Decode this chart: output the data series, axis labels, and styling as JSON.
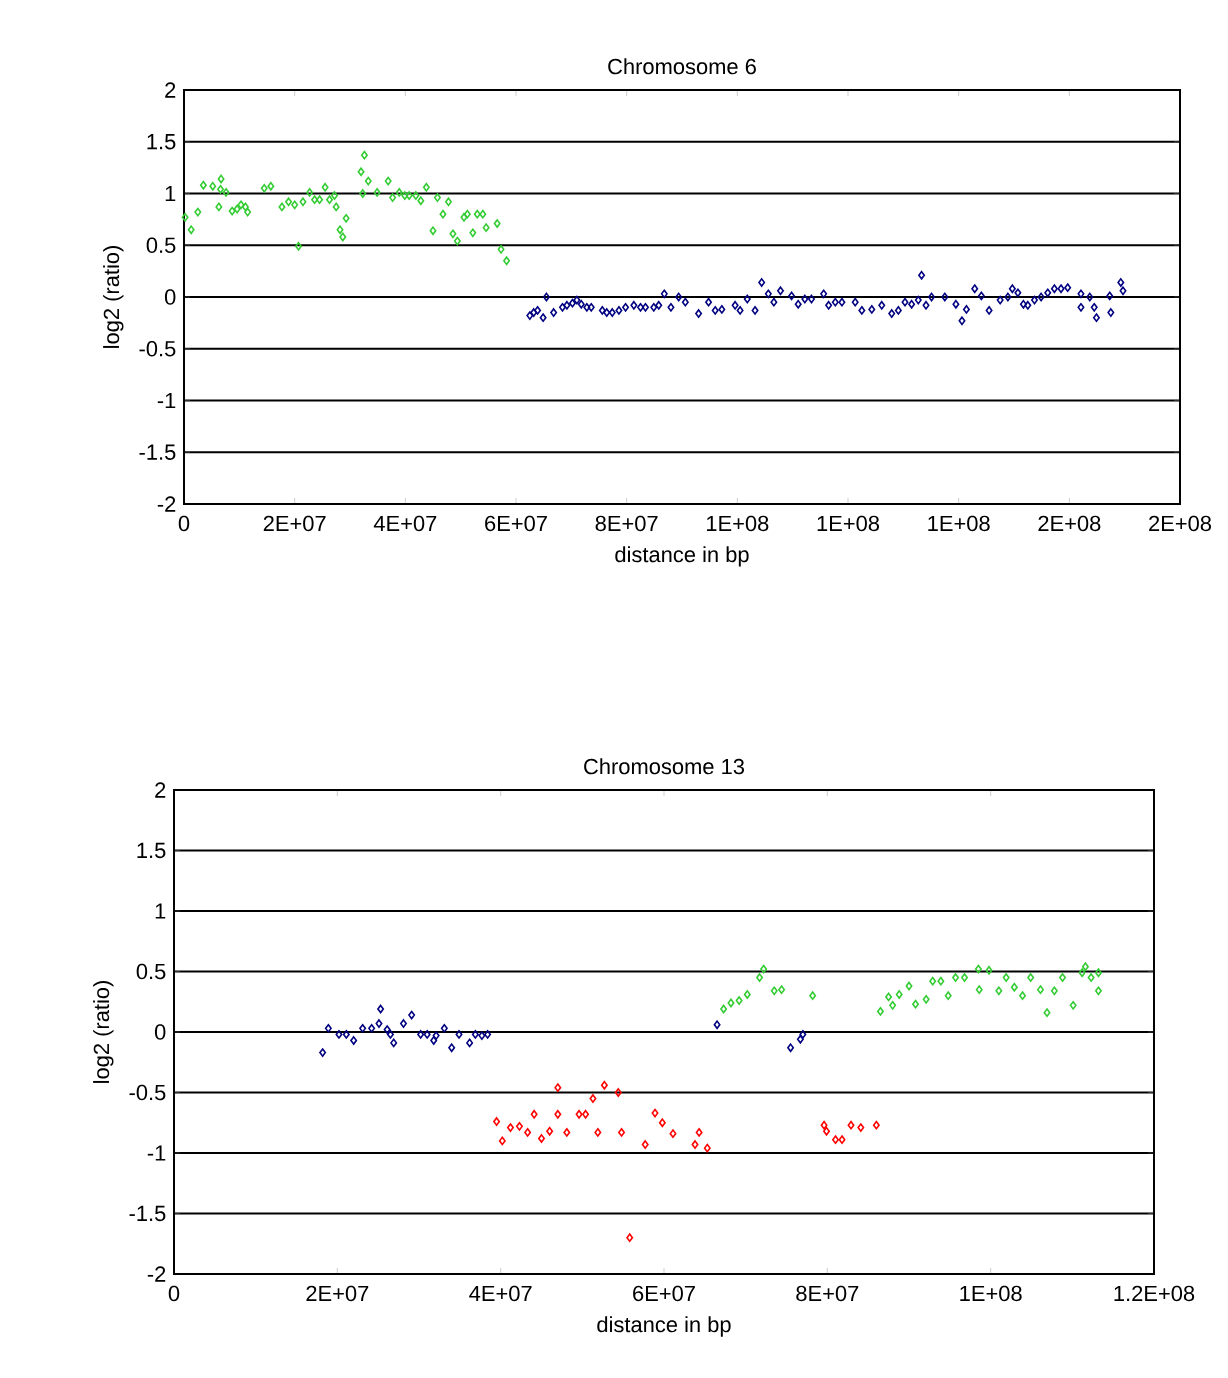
{
  "chart_data": [
    {
      "type": "scatter",
      "title": "Chromosome 6",
      "xlabel": "distance in bp",
      "ylabel": "log2 (ratio)",
      "xlim": [
        0,
        180000000.0
      ],
      "ylim": [
        -2,
        2
      ],
      "xticks": [
        0,
        {
          "value": 20000000.0,
          "label": "2E+07"
        },
        {
          "value": 40000000.0,
          "label": "4E+07"
        },
        {
          "value": 60000000.0,
          "label": "6E+07"
        },
        {
          "value": 80000000.0,
          "label": "8E+07"
        },
        {
          "value": 100000000.0,
          "label": "1E+08"
        },
        {
          "value": 120000000.0,
          "label": "1E+08"
        },
        {
          "value": 140000000.0,
          "label": "1E+08"
        },
        {
          "value": 160000000.0,
          "label": "2E+08"
        },
        {
          "value": 180000000.0,
          "label": "2E+08"
        }
      ],
      "yticks": [
        -2,
        -1.5,
        -1,
        -0.5,
        0,
        0.5,
        1,
        1.5,
        2
      ],
      "grid": "y",
      "marker": "diamond",
      "series": [
        {
          "color": "#33cc33",
          "x": [
            200000.0,
            1300000.0,
            2500000.0,
            3500000.0,
            5200000.0,
            6300000.0,
            6700000.0,
            6600000.0,
            7600000.0,
            8700000.0,
            9600000.0,
            10300000.0,
            11100000.0,
            11500000.0,
            14500000.0,
            15700000.0,
            17700000.0,
            18900000.0,
            20000000.0,
            20700000.0,
            21500000.0,
            22700000.0,
            23600000.0,
            24500000.0,
            25500000.0,
            26300000.0,
            27200000.0,
            27500000.0,
            28200000.0,
            28700000.0,
            29300000.0,
            32000000.0,
            32600000.0,
            33300000.0,
            32300000.0,
            34900000.0,
            36900000.0,
            37700000.0,
            38900000.0,
            39900000.0,
            40700000.0,
            41900000.0,
            42800000.0,
            43800000.0,
            45000000.0,
            45800000.0,
            46800000.0,
            47800000.0,
            48600000.0,
            49400000.0,
            50600000.0,
            51200000.0,
            52200000.0,
            53000000.0,
            54000000.0,
            54600000.0,
            56600000.0,
            57300000.0,
            58300000.0
          ],
          "values": [
            0.77,
            0.65,
            0.82,
            1.08,
            1.07,
            0.87,
            1.14,
            1.04,
            1.01,
            0.83,
            0.85,
            0.89,
            0.87,
            0.82,
            1.05,
            1.07,
            0.87,
            0.92,
            0.89,
            0.49,
            0.92,
            1.01,
            0.94,
            0.94,
            1.06,
            0.94,
            0.98,
            0.87,
            0.65,
            0.58,
            0.76,
            1.21,
            1.37,
            1.12,
            1.0,
            1.01,
            1.12,
            0.96,
            1.01,
            0.98,
            0.98,
            0.98,
            0.93,
            1.06,
            0.64,
            0.96,
            0.8,
            0.92,
            0.61,
            0.54,
            0.77,
            0.8,
            0.62,
            0.8,
            0.8,
            0.67,
            0.71,
            0.46,
            0.35
          ]
        },
        {
          "color": "#000080",
          "x": [
            62500000.0,
            63200000.0,
            63900000.0,
            64900000.0,
            65500000.0,
            66800000.0,
            68400000.0,
            69200000.0,
            70200000.0,
            71000000.0,
            71800000.0,
            72800000.0,
            73600000.0,
            75600000.0,
            76400000.0,
            77400000.0,
            78600000.0,
            79800000.0,
            81300000.0,
            82500000.0,
            83400000.0,
            84900000.0,
            85800000.0,
            86800000.0,
            88000000.0,
            89400000.0,
            90600000.0,
            93000000.0,
            94800000.0,
            96000000.0,
            97200000.0,
            99600000.0,
            100500000.0,
            101800000.0,
            103200000.0,
            104400000.0,
            105600000.0,
            106600000.0,
            107800000.0,
            109800000.0,
            111000000.0,
            112200000.0,
            113400000.0,
            115600000.0,
            116500000.0,
            117700000.0,
            118900000.0,
            121300000.0,
            122500000.0,
            124300000.0,
            126100000.0,
            127900000.0,
            129100000.0,
            130300000.0,
            131500000.0,
            132700000.0,
            133300000.0,
            134100000.0,
            135100000.0,
            137500000.0,
            139500000.0,
            140600000.0,
            141400000.0,
            142900000.0,
            144100000.0,
            145500000.0,
            147500000.0,
            148900000.0,
            149700000.0,
            150700000.0,
            151700000.0,
            152500000.0,
            153700000.0,
            154900000.0,
            156100000.0,
            157300000.0,
            158500000.0,
            159700000.0,
            162100000.0,
            163700000.0,
            162100000.0,
            164500000.0,
            164900000.0,
            167300000.0,
            167500000.0,
            169300000.0,
            169700000.0
          ],
          "values": [
            -0.18,
            -0.15,
            -0.13,
            -0.2,
            0.0,
            -0.15,
            -0.1,
            -0.08,
            -0.06,
            -0.03,
            -0.07,
            -0.1,
            -0.1,
            -0.13,
            -0.15,
            -0.15,
            -0.13,
            -0.1,
            -0.08,
            -0.1,
            -0.1,
            -0.1,
            -0.08,
            0.03,
            -0.1,
            0.0,
            -0.05,
            -0.16,
            -0.05,
            -0.13,
            -0.12,
            -0.08,
            -0.13,
            -0.02,
            -0.13,
            0.14,
            0.03,
            -0.05,
            0.06,
            0.01,
            -0.07,
            -0.02,
            -0.02,
            0.03,
            -0.08,
            -0.05,
            -0.05,
            -0.05,
            -0.13,
            -0.12,
            -0.08,
            -0.16,
            -0.13,
            -0.05,
            -0.07,
            -0.03,
            0.21,
            -0.08,
            0.0,
            0.0,
            -0.07,
            -0.23,
            -0.12,
            0.08,
            0.01,
            -0.13,
            -0.03,
            0.0,
            0.08,
            0.04,
            -0.07,
            -0.08,
            -0.03,
            0.0,
            0.04,
            0.08,
            0.08,
            0.09,
            0.03,
            0.0,
            -0.1,
            -0.1,
            -0.2,
            0.01,
            -0.15,
            0.14,
            0.06
          ]
        }
      ]
    },
    {
      "type": "scatter",
      "title": "Chromosome 13",
      "xlabel": "distance in bp",
      "ylabel": "log2 (ratio)",
      "xlim": [
        0,
        120000000.0
      ],
      "ylim": [
        -2,
        2
      ],
      "xticks": [
        0,
        {
          "value": 20000000.0,
          "label": "2E+07"
        },
        {
          "value": 40000000.0,
          "label": "4E+07"
        },
        {
          "value": 60000000.0,
          "label": "6E+07"
        },
        {
          "value": 80000000.0,
          "label": "8E+07"
        },
        {
          "value": 100000000.0,
          "label": "1E+08"
        },
        {
          "value": 120000000.0,
          "label": "1.2E+08"
        }
      ],
      "yticks": [
        -2,
        -1.5,
        -1,
        -0.5,
        0,
        0.5,
        1,
        1.5,
        2
      ],
      "grid": "y",
      "marker": "diamond",
      "series": [
        {
          "color": "#000080",
          "x": [
            18200000.0,
            18900000.0,
            20200000.0,
            21100000.0,
            22000000.0,
            23100000.0,
            24200000.0,
            25100000.0,
            25300000.0,
            26100000.0,
            26500000.0,
            26900000.0,
            28100000.0,
            29100000.0,
            30200000.0,
            31000000.0,
            31800000.0,
            32100000.0,
            33100000.0,
            34000000.0,
            34900000.0,
            36200000.0,
            36900000.0,
            37700000.0,
            38400000.0,
            66500000.0,
            75500000.0,
            76700000.0,
            77000000.0
          ],
          "values": [
            -0.17,
            0.03,
            -0.02,
            -0.02,
            -0.07,
            0.03,
            0.03,
            0.07,
            0.19,
            0.02,
            -0.02,
            -0.09,
            0.07,
            0.14,
            -0.02,
            -0.02,
            -0.07,
            -0.03,
            0.03,
            -0.13,
            -0.02,
            -0.09,
            -0.02,
            -0.03,
            -0.02,
            0.06,
            -0.13,
            -0.06,
            -0.02
          ]
        },
        {
          "color": "#ff0000",
          "x": [
            39500000.0,
            40200000.0,
            41200000.0,
            42300000.0,
            43300000.0,
            44100000.0,
            45000000.0,
            46000000.0,
            47000000.0,
            47000000.0,
            48100000.0,
            49600000.0,
            50400000.0,
            51300000.0,
            51900000.0,
            52700000.0,
            54400000.0,
            54800000.0,
            55800000.0,
            57700000.0,
            58900000.0,
            59800000.0,
            61100000.0,
            63800000.0,
            64300000.0,
            65300000.0,
            79600000.0,
            79900000.0,
            81000000.0,
            81800000.0,
            82900000.0,
            84100000.0,
            86000000.0
          ],
          "values": [
            -0.74,
            -0.9,
            -0.79,
            -0.78,
            -0.83,
            -0.68,
            -0.88,
            -0.82,
            -0.46,
            -0.68,
            -0.83,
            -0.68,
            -0.68,
            -0.55,
            -0.83,
            -0.44,
            -0.5,
            -0.83,
            -1.7,
            -0.93,
            -0.67,
            -0.75,
            -0.84,
            -0.93,
            -0.83,
            -0.96,
            -0.77,
            -0.82,
            -0.89,
            -0.89,
            -0.77,
            -0.79,
            -0.77
          ]
        },
        {
          "color": "#33cc33",
          "x": [
            67300000.0,
            68200000.0,
            69200000.0,
            70200000.0,
            71700000.0,
            72200000.0,
            73500000.0,
            74400000.0,
            78200000.0,
            86500000.0,
            87500000.0,
            88000000.0,
            88800000.0,
            90000000.0,
            90800000.0,
            92100000.0,
            92900000.0,
            93900000.0,
            94800000.0,
            95700000.0,
            96800000.0,
            98500000.0,
            98600000.0,
            99800000.0,
            101000000.0,
            101900000.0,
            102900000.0,
            103900000.0,
            104900000.0,
            106100000.0,
            106900000.0,
            107800000.0,
            108800000.0,
            110100000.0,
            111200000.0,
            111600000.0,
            112300000.0,
            113200000.0,
            113200000.0
          ],
          "values": [
            0.19,
            0.24,
            0.26,
            0.31,
            0.45,
            0.52,
            0.34,
            0.35,
            0.3,
            0.17,
            0.29,
            0.22,
            0.31,
            0.38,
            0.23,
            0.27,
            0.42,
            0.42,
            0.3,
            0.45,
            0.45,
            0.52,
            0.35,
            0.51,
            0.34,
            0.45,
            0.37,
            0.3,
            0.45,
            0.35,
            0.16,
            0.34,
            0.45,
            0.22,
            0.49,
            0.54,
            0.45,
            0.34,
            0.49
          ]
        }
      ]
    }
  ]
}
